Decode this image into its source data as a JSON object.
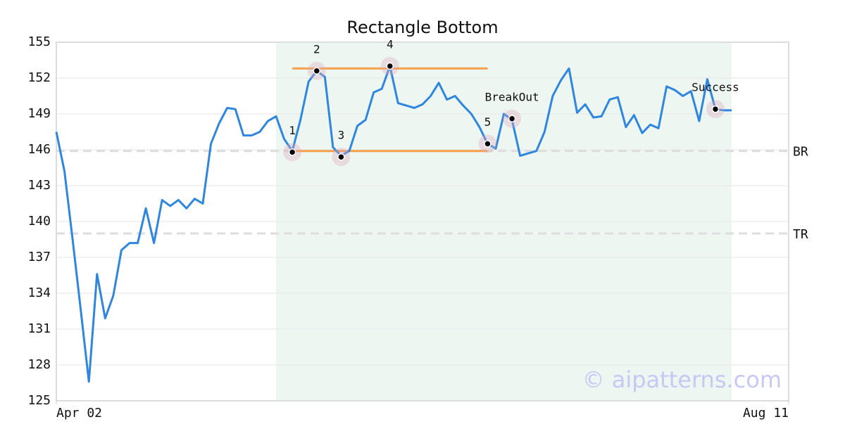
{
  "chart_data": {
    "type": "line",
    "title": "Rectangle Bottom",
    "watermark": "© aipatterns.com",
    "x": [
      0,
      1,
      2,
      3,
      4,
      5,
      6,
      7,
      8,
      9,
      10,
      11,
      12,
      13,
      14,
      15,
      16,
      17,
      18,
      19,
      20,
      21,
      22,
      23,
      24,
      25,
      26,
      27,
      28,
      29,
      30,
      31,
      32,
      33,
      34,
      35,
      36,
      37,
      38,
      39,
      40,
      41,
      42,
      43,
      44,
      45,
      46,
      47,
      48,
      49,
      50,
      51,
      52,
      53,
      54,
      55,
      56,
      57,
      58,
      59,
      60,
      61,
      62,
      63,
      64,
      65,
      66,
      67,
      68,
      69,
      70,
      71,
      72,
      73,
      74,
      75,
      76,
      77,
      78,
      79,
      80,
      81,
      82,
      83
    ],
    "values": [
      147.5,
      144.2,
      138.5,
      132.6,
      126.6,
      135.6,
      131.9,
      133.8,
      137.6,
      138.2,
      138.2,
      141.1,
      138.2,
      141.8,
      141.3,
      141.8,
      141.1,
      141.9,
      141.5,
      146.5,
      148.2,
      149.5,
      149.4,
      147.2,
      147.2,
      147.5,
      148.4,
      148.8,
      146.9,
      145.9,
      148.5,
      151.7,
      152.6,
      152.1,
      146.2,
      145.5,
      145.9,
      148,
      148.5,
      150.8,
      151.1,
      153,
      149.9,
      149.7,
      149.5,
      149.8,
      150.5,
      151.6,
      150.2,
      150.5,
      149.7,
      149,
      147.9,
      146.5,
      146.1,
      149,
      148.5,
      145.5,
      145.7,
      145.9,
      147.5,
      150.5,
      151.8,
      152.8,
      149.1,
      149.8,
      148.7,
      148.8,
      150.2,
      150.4,
      147.9,
      148.9,
      147.4,
      148.1,
      147.8,
      151.3,
      151,
      150.5,
      150.9,
      148.4,
      151.9,
      149.4,
      149.3,
      149.3
    ],
    "color": "#2e86de",
    "xlim": [
      0,
      90
    ],
    "xticks": [
      {
        "value": 0,
        "label": "Apr 02"
      },
      {
        "value": 90,
        "label": "Aug 11"
      }
    ],
    "ylim": [
      125,
      155
    ],
    "yticks": [
      125,
      128,
      131,
      134,
      137,
      140,
      143,
      146,
      149,
      152,
      155
    ],
    "grid": true,
    "shaded_region": {
      "x": [
        27,
        83
      ],
      "color": "#eef6f2"
    },
    "hlines": [
      {
        "label": "BR",
        "value": 145.9
      },
      {
        "label": "TR",
        "value": 139
      }
    ],
    "levels": [
      {
        "value": 152.8,
        "x": [
          29,
          53
        ],
        "color": "#f5a04a"
      },
      {
        "value": 145.9,
        "x": [
          29,
          53
        ],
        "color": "#f5a04a"
      }
    ],
    "points": [
      {
        "label": "1",
        "x": 29,
        "y": 145.8
      },
      {
        "label": "2",
        "x": 32,
        "y": 152.6
      },
      {
        "label": "3",
        "x": 35,
        "y": 145.4
      },
      {
        "label": "4",
        "x": 41,
        "y": 153
      },
      {
        "label": "5",
        "x": 53,
        "y": 146.5
      },
      {
        "label": "BreakOut",
        "x": 56,
        "y": 148.6
      },
      {
        "label": "Success",
        "x": 81,
        "y": 149.4
      }
    ]
  }
}
